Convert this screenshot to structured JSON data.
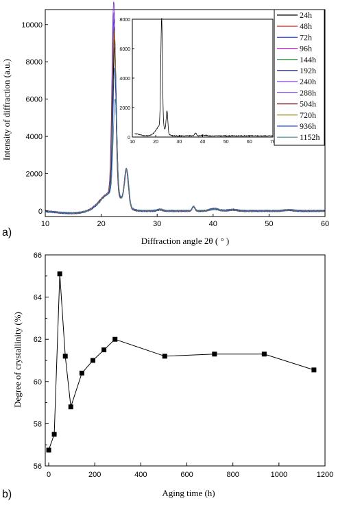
{
  "chart_data": [
    {
      "panel_label": "a)",
      "type": "line",
      "xlabel": "Diffraction angle 2θ ( ° )",
      "ylabel": "Intensity of diffraction (a.u.)",
      "xlim": [
        10,
        60
      ],
      "ylim": [
        -300,
        10800
      ],
      "xticks": [
        "10",
        "20",
        "30",
        "40",
        "50",
        "60"
      ],
      "yticks": [
        "0",
        "2000",
        "4000",
        "6000",
        "8000",
        "10000"
      ],
      "legend_position": "top-right",
      "peaks_model": {
        "centers_main": 22.3,
        "centers_secondary": 24.5,
        "minor_peaks": [
          30.5,
          36.5,
          40.2,
          43.5,
          53.5
        ]
      },
      "series": [
        {
          "name": "24h",
          "color": "#000000",
          "main_peak": 7900,
          "shift": 0.25
        },
        {
          "name": "48h",
          "color": "#e41a1c",
          "main_peak": 8600,
          "shift": 0.0
        },
        {
          "name": "72h",
          "color": "#2b3fd6",
          "main_peak": 9400,
          "shift": -0.05
        },
        {
          "name": "96h",
          "color": "#d62bd6",
          "main_peak": 9000,
          "shift": 0.05
        },
        {
          "name": "144h",
          "color": "#0f7d1f",
          "main_peak": 8900,
          "shift": 0.1
        },
        {
          "name": "192h",
          "color": "#0b0b6a",
          "main_peak": 8200,
          "shift": 0.15
        },
        {
          "name": "240h",
          "color": "#7a1fd6",
          "main_peak": 10400,
          "shift": -0.15
        },
        {
          "name": "288h",
          "color": "#6a3fb5",
          "main_peak": 9800,
          "shift": -0.1
        },
        {
          "name": "504h",
          "color": "#7a1414",
          "main_peak": 8300,
          "shift": 0.0
        },
        {
          "name": "720h",
          "color": "#9a8a1a",
          "main_peak": 8800,
          "shift": 0.05
        },
        {
          "name": "936h",
          "color": "#1f4fd6",
          "main_peak": 6700,
          "shift": 0.3
        },
        {
          "name": "1152h",
          "color": "#3f7f8f",
          "main_peak": 5100,
          "shift": 0.45
        }
      ],
      "inset": {
        "xlim": [
          10,
          70
        ],
        "ylim": [
          0,
          8000
        ],
        "xticks": [
          "10",
          "20",
          "30",
          "40",
          "50",
          "60",
          "70"
        ],
        "yticks": [
          "0",
          "2000",
          "4000",
          "6000",
          "8000"
        ],
        "main_peak": 7400,
        "secondary_peak": 1500,
        "baseline": 80
      }
    },
    {
      "panel_label": "b)",
      "type": "scatter",
      "xlabel": "Aging time (h)",
      "ylabel": "Degree of crystallinity  (%)",
      "xlim": [
        -15,
        1200
      ],
      "ylim": [
        56,
        66
      ],
      "xticks": [
        "0",
        "200",
        "400",
        "600",
        "800",
        "1000",
        "1200"
      ],
      "yticks": [
        "56",
        "58",
        "60",
        "62",
        "64",
        "66"
      ],
      "x": [
        0,
        24,
        48,
        72,
        96,
        144,
        192,
        240,
        288,
        504,
        720,
        936,
        1152
      ],
      "y": [
        56.75,
        57.5,
        65.1,
        61.2,
        58.8,
        60.4,
        61.0,
        61.5,
        62.0,
        61.2,
        61.3,
        61.3,
        60.55
      ]
    }
  ]
}
